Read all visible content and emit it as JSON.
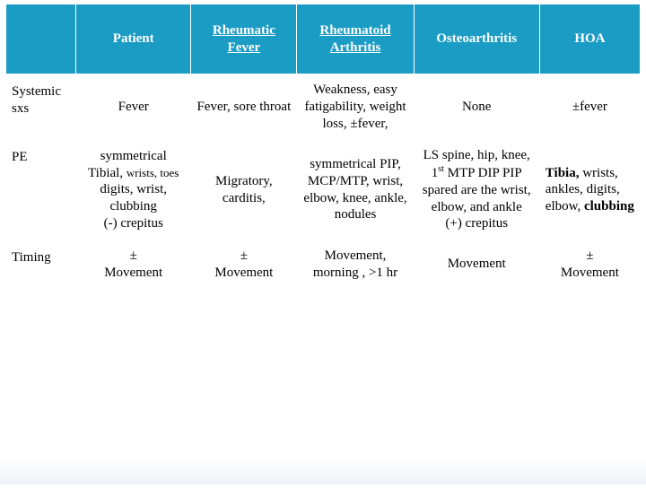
{
  "colors": {
    "header_bg": "#1b9cc5",
    "header_fg": "#ffffff",
    "text": "#000000",
    "border": "#ffffff"
  },
  "columns": {
    "c0": "",
    "c1": "Patient",
    "c2": "Rheumatic Fever",
    "c3": "Rheumatoid Arthritis",
    "c4": "Osteoarthritis",
    "c5": "HOA"
  },
  "rows": {
    "r1": {
      "label": "Systemic sxs",
      "patient": "Fever",
      "rf": "Fever, sore throat",
      "ra": "Weakness, easy fatigability, weight loss, ±fever,",
      "oa": "None",
      "hoa": "±fever"
    },
    "r2": {
      "label": "PE",
      "patient_l1": "symmetrical",
      "patient_l2": "Tibial, ",
      "patient_l2b": "wrists, toes ",
      "patient_l3": "digits, wrist, clubbing",
      "patient_l4": "(-) crepitus",
      "rf": "Migratory, carditis,",
      "ra": "symmetrical PIP, MCP/MTP, wrist, elbow, knee, ankle, nodules",
      "oa_l1": "LS spine, hip, knee, 1",
      "oa_sup": "st",
      "oa_l1b": " MTP DIP PIP",
      "oa_l2": "spared are the wrist, elbow, and ankle",
      "oa_l3": "(+) crepitus",
      "hoa_a": "Tibia, ",
      "hoa_b": "wrists, ankles, digits, elbow, ",
      "hoa_c": "clubbing"
    },
    "r3": {
      "label": "Timing",
      "patient_a": "±",
      "patient_b": "Movement",
      "rf_a": "±",
      "rf_b": "Movement",
      "ra": "Movement, morning , >1 hr",
      "oa": "Movement",
      "hoa_a": "±",
      "hoa_b": "Movement"
    }
  }
}
